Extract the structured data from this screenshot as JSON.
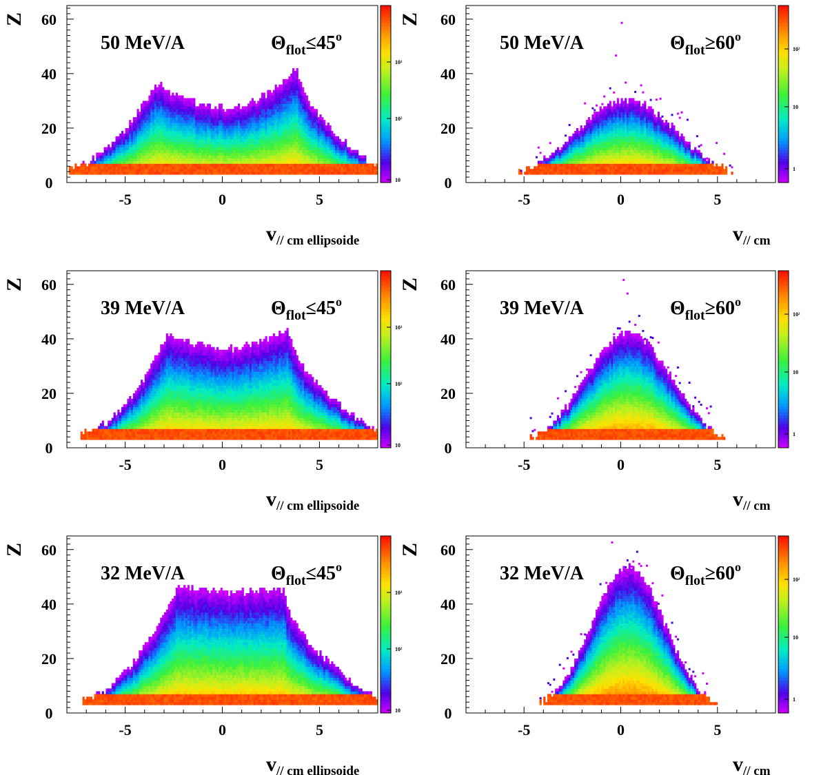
{
  "chart_data": [
    {
      "type": "heatmap",
      "energy_label": "50 MeV/A",
      "angle_label": "≤45",
      "xlabel": "ellipsoide",
      "ylabel": "Z",
      "xlim": [
        -8,
        8
      ],
      "ylim": [
        0,
        65
      ],
      "x_ticks": [
        "-5",
        "0",
        "5"
      ],
      "y_ticks": [
        "0",
        "20",
        "40",
        "60"
      ],
      "colorbar_labels": [
        "10",
        "10²",
        "10³"
      ],
      "shape": {
        "left_edge": -7.9,
        "right_edge": 8.0,
        "peaks": [
          {
            "x": -3.4,
            "z": 36
          },
          {
            "x": 3.9,
            "z": 42
          }
        ],
        "valley": {
          "x": 0.3,
          "z": 27
        },
        "floor_z": 3
      }
    },
    {
      "type": "heatmap",
      "energy_label": "50 MeV/A",
      "angle_label": "≥60",
      "xlabel": "",
      "ylabel": "",
      "xlim": [
        -8,
        8
      ],
      "ylim": [
        0,
        65
      ],
      "x_ticks": [
        "-5",
        "0",
        "5"
      ],
      "y_ticks": [
        "0",
        "20",
        "40",
        "60"
      ],
      "colorbar_labels": [
        "1",
        "10",
        "10²"
      ],
      "shape": {
        "center": 0.3,
        "width": 2.6,
        "peak_z": 30,
        "outliers": [
          {
            "x": 0.0,
            "z": 59
          },
          {
            "x": -0.3,
            "z": 47
          }
        ]
      }
    },
    {
      "type": "heatmap",
      "energy_label": "39 MeV/A",
      "angle_label": "≤45",
      "xlabel": "ellipsoide",
      "ylabel": "Z",
      "xlim": [
        -8,
        8
      ],
      "ylim": [
        0,
        65
      ],
      "x_ticks": [
        "-5",
        "0",
        "5"
      ],
      "y_ticks": [
        "0",
        "20",
        "40",
        "60"
      ],
      "colorbar_labels": [
        "10",
        "10²",
        "10³"
      ],
      "shape": {
        "left_edge": -7.3,
        "right_edge": 8.0,
        "peaks": [
          {
            "x": -2.8,
            "z": 41
          },
          {
            "x": 3.4,
            "z": 44
          }
        ],
        "valley": {
          "x": 0.2,
          "z": 36
        },
        "floor_z": 3
      }
    },
    {
      "type": "heatmap",
      "energy_label": "39 MeV/A",
      "angle_label": "≥60",
      "xlabel": "",
      "ylabel": "",
      "xlim": [
        -8,
        8
      ],
      "ylim": [
        0,
        65
      ],
      "x_ticks": [
        "-5",
        "0",
        "5"
      ],
      "y_ticks": [
        "0",
        "20",
        "40",
        "60"
      ],
      "colorbar_labels": [
        "1",
        "10",
        "10²"
      ],
      "shape": {
        "center": 0.4,
        "width": 2.2,
        "peak_z": 42,
        "outliers": [
          {
            "x": 0.1,
            "z": 62
          },
          {
            "x": 0.3,
            "z": 57
          }
        ]
      }
    },
    {
      "type": "heatmap",
      "energy_label": "32 MeV/A",
      "angle_label": "≤45",
      "xlabel": "ellipsoide",
      "ylabel": "Z",
      "xlim": [
        -8,
        8
      ],
      "ylim": [
        0,
        65
      ],
      "x_ticks": [
        "-5",
        "0",
        "5"
      ],
      "y_ticks": [
        "0",
        "20",
        "40",
        "60"
      ],
      "colorbar_labels": [
        "10",
        "10²",
        "10³"
      ],
      "shape": {
        "left_edge": -7.2,
        "right_edge": 8.0,
        "peaks": [
          {
            "x": -2.3,
            "z": 46
          },
          {
            "x": 3.2,
            "z": 45
          }
        ],
        "valley": {
          "x": 0.5,
          "z": 44
        },
        "floor_z": 3
      }
    },
    {
      "type": "heatmap",
      "energy_label": "32 MeV/A",
      "angle_label": "≥60",
      "xlabel": "",
      "ylabel": "",
      "xlim": [
        -8,
        8
      ],
      "ylim": [
        0,
        65
      ],
      "x_ticks": [
        "-5",
        "0",
        "5"
      ],
      "y_ticks": [
        "0",
        "20",
        "40",
        "60"
      ],
      "colorbar_labels": [
        "1",
        "10",
        "10²"
      ],
      "shape": {
        "center": 0.4,
        "width": 1.9,
        "peak_z": 53,
        "outliers": [
          {
            "x": -0.5,
            "z": 63
          },
          {
            "x": 0.6,
            "z": 56
          }
        ]
      }
    }
  ],
  "common": {
    "v_symbol": "v",
    "v_subscript": "// cm",
    "theta_symbol": "Θ",
    "theta_subscript": "flot",
    "theta_superscript": "o"
  }
}
